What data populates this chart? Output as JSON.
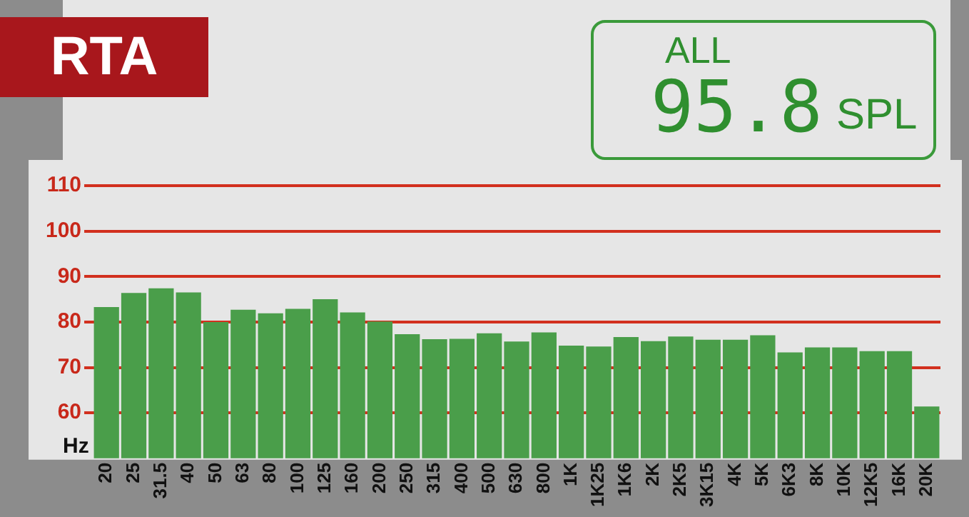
{
  "chart_data": {
    "type": "bar",
    "title": "RTA",
    "xlabel": "Hz",
    "annotations": [
      "ALL",
      "95.8",
      "SPL"
    ],
    "categories": [
      "20",
      "25",
      "31.5",
      "40",
      "50",
      "63",
      "80",
      "100",
      "125",
      "160",
      "200",
      "250",
      "315",
      "400",
      "500",
      "630",
      "800",
      "1K",
      "1K25",
      "1K6",
      "2K",
      "2K5",
      "3K15",
      "4K",
      "5K",
      "6K3",
      "8K",
      "10K",
      "12K5",
      "16K",
      "20K"
    ],
    "values": [
      83.3,
      86.4,
      87.4,
      86.5,
      80,
      82.7,
      81.9,
      82.9,
      85,
      82.1,
      80.1,
      77.3,
      76.2,
      76.3,
      77.5,
      75.7,
      77.7,
      74.8,
      74.6,
      76.7,
      75.8,
      76.8,
      76.1,
      76.1,
      77.1,
      73.3,
      74.4,
      74.4,
      73.6,
      73.6,
      61.4
    ],
    "color": "#4a9e4a",
    "ylim": [
      50,
      110
    ],
    "yticks": [
      60,
      70,
      80,
      90,
      100,
      110
    ],
    "grid": "y"
  }
}
